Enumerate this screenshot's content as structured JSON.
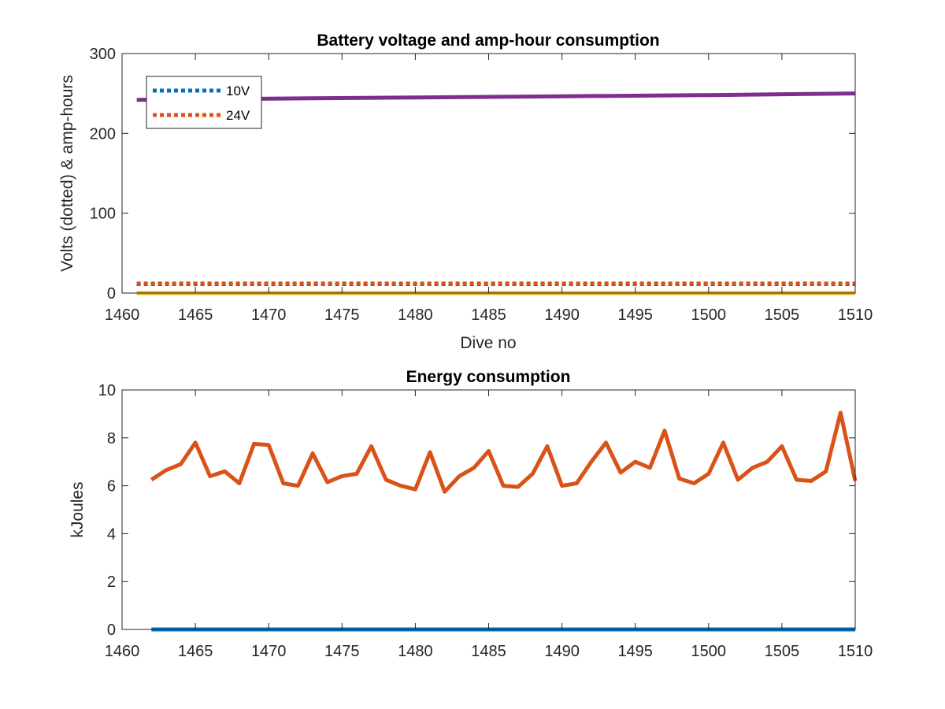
{
  "chart_data": [
    {
      "type": "line",
      "title": "Battery voltage and amp-hour consumption",
      "xlabel": "Dive no",
      "ylabel": "Volts (dotted) & amp-hours",
      "xlim": [
        1460,
        1510
      ],
      "ylim": [
        0,
        300
      ],
      "xticks": [
        1460,
        1465,
        1470,
        1475,
        1480,
        1485,
        1490,
        1495,
        1500,
        1505,
        1510
      ],
      "yticks": [
        0,
        100,
        200,
        300
      ],
      "grid": false,
      "legend_location": "top-left",
      "series": [
        {
          "name": "10V",
          "style": "dotted",
          "color": "#0072BD",
          "x": [
            1461,
            1510
          ],
          "y": [
            11.3,
            11.3
          ]
        },
        {
          "name": "24V",
          "style": "dotted",
          "color": "#D95319",
          "x": [
            1461,
            1510
          ],
          "y": [
            12.0,
            12.0
          ]
        },
        {
          "style": "solid",
          "color": "#7E2F8E",
          "x": [
            1461,
            1470,
            1480,
            1490,
            1500,
            1510
          ],
          "y": [
            242,
            243.5,
            245,
            246.5,
            248,
            250
          ]
        },
        {
          "style": "solid",
          "color": "#EDB120",
          "x": [
            1461,
            1510
          ],
          "y": [
            0,
            0
          ]
        }
      ]
    },
    {
      "type": "line",
      "title": "Energy consumption",
      "xlabel": "",
      "ylabel": "kJoules",
      "xlim": [
        1460,
        1510
      ],
      "ylim": [
        0,
        10
      ],
      "xticks": [
        1460,
        1465,
        1470,
        1475,
        1480,
        1485,
        1490,
        1495,
        1500,
        1505,
        1510
      ],
      "yticks": [
        0,
        2,
        4,
        6,
        8,
        10
      ],
      "grid": false,
      "series": [
        {
          "style": "solid",
          "color": "#0072BD",
          "x": [
            1462,
            1510
          ],
          "y": [
            0,
            0
          ]
        },
        {
          "style": "solid",
          "color": "#D95319",
          "x": [
            1462,
            1463,
            1464,
            1465,
            1466,
            1467,
            1468,
            1469,
            1470,
            1471,
            1472,
            1473,
            1474,
            1475,
            1476,
            1477,
            1478,
            1479,
            1480,
            1481,
            1482,
            1483,
            1484,
            1485,
            1486,
            1487,
            1488,
            1489,
            1490,
            1491,
            1492,
            1493,
            1494,
            1495,
            1496,
            1497,
            1498,
            1499,
            1500,
            1501,
            1502,
            1503,
            1504,
            1505,
            1506,
            1507,
            1508,
            1509,
            1510
          ],
          "y": [
            6.25,
            6.65,
            6.9,
            7.8,
            6.4,
            6.6,
            6.1,
            7.75,
            7.7,
            6.1,
            6.0,
            7.35,
            6.15,
            6.4,
            6.5,
            7.65,
            6.25,
            6.0,
            5.85,
            7.4,
            5.75,
            6.4,
            6.75,
            7.45,
            6.0,
            5.95,
            6.5,
            7.65,
            6.0,
            6.1,
            7.0,
            7.8,
            6.55,
            7.0,
            6.75,
            8.3,
            6.3,
            6.1,
            6.5,
            7.8,
            6.25,
            6.75,
            7.0,
            7.65,
            6.25,
            6.2,
            6.6,
            9.05,
            6.2
          ]
        }
      ]
    }
  ]
}
